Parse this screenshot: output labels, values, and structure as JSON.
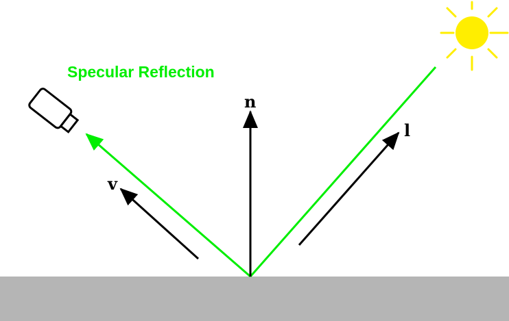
{
  "diagram": {
    "title": "Specular Reflection",
    "labels": {
      "normal": "n",
      "light": "l",
      "view": "v"
    },
    "icons": {
      "light_source": "sun-icon",
      "viewer": "camera-icon"
    },
    "colors": {
      "reflection_path": "#00ee00",
      "title": "#00ee00",
      "vectors": "#000000",
      "surface": "#b5b5b5",
      "sun": "#ffee00",
      "background": "#ffffff"
    }
  }
}
